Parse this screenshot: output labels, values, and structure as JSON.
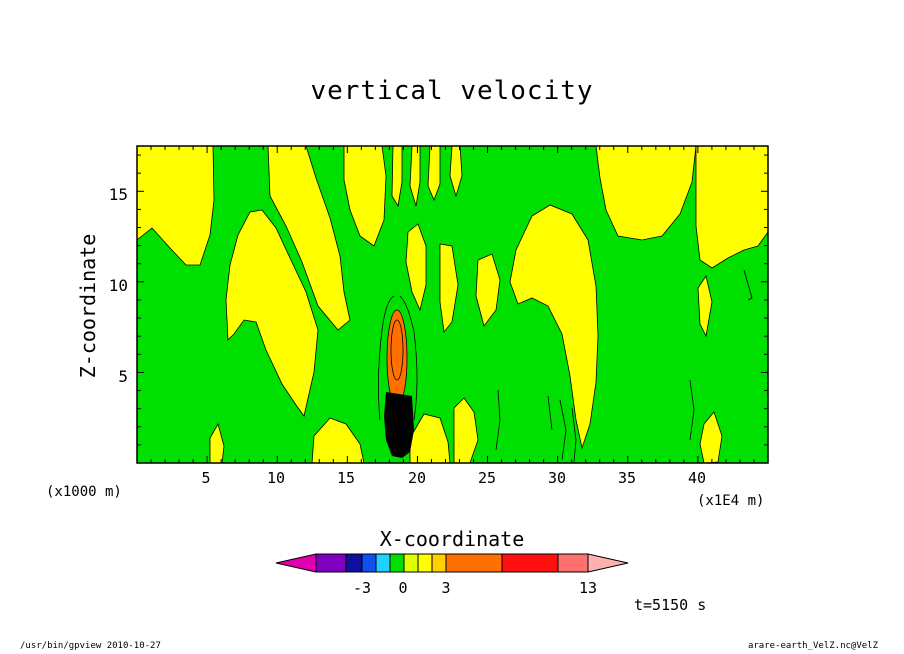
{
  "chart_data": {
    "type": "heatmap",
    "title": "vertical velocity",
    "xlabel": "X-coordinate",
    "ylabel": "Z-coordinate",
    "x_unit_left": "(x1000 m)",
    "x_unit_right": "(x1E4 m)",
    "xlim": [
      0,
      45
    ],
    "ylim": [
      0,
      17.5
    ],
    "x_ticks": [
      "5",
      "10",
      "15",
      "20",
      "25",
      "30",
      "35",
      "40"
    ],
    "y_ticks": [
      "5",
      "10",
      "15"
    ],
    "colorbar": {
      "colors": [
        "#e000b0",
        "#8000c0",
        "#1010a0",
        "#1050f0",
        "#20d0ff",
        "#00e000",
        "#e0ff00",
        "#ffff00",
        "#ffd000",
        "#ff7000",
        "#ff1010",
        "#ff7070",
        "#ffb0b0"
      ],
      "tick_labels": [
        "-3",
        "0",
        "3",
        "13"
      ]
    },
    "field_colors": {
      "green": "#00e000",
      "yellow": "#ffff00",
      "orange": "#ff7000",
      "black": "#000000"
    }
  },
  "annotation": {
    "time": "t=5150 s"
  },
  "footer": {
    "left": "/usr/bin/gpview   2010-10-27",
    "right": "arare-earth_VelZ.nc@VelZ"
  }
}
